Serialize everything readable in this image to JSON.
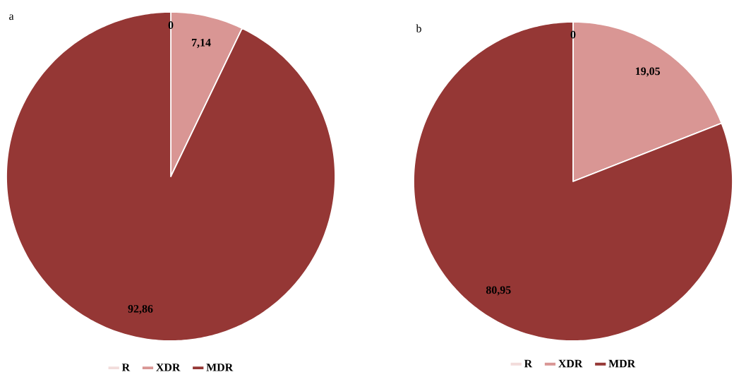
{
  "chart_data": [
    {
      "type": "pie",
      "title": "a",
      "categories": [
        "R",
        "XDR",
        "MDR"
      ],
      "values": [
        0,
        7.14,
        92.86
      ],
      "colors": [
        "#f2dcdb",
        "#d99694",
        "#953735"
      ],
      "value_labels": [
        "0",
        "7,14",
        "92,86"
      ],
      "legend": "bottom"
    },
    {
      "type": "pie",
      "title": "b",
      "categories": [
        "R",
        "XDR",
        "MDR"
      ],
      "values": [
        0,
        19.05,
        80.95
      ],
      "colors": [
        "#f2dcdb",
        "#d99694",
        "#953735"
      ],
      "value_labels": [
        "0",
        "19,05",
        "80,95"
      ],
      "legend": "bottom"
    }
  ]
}
